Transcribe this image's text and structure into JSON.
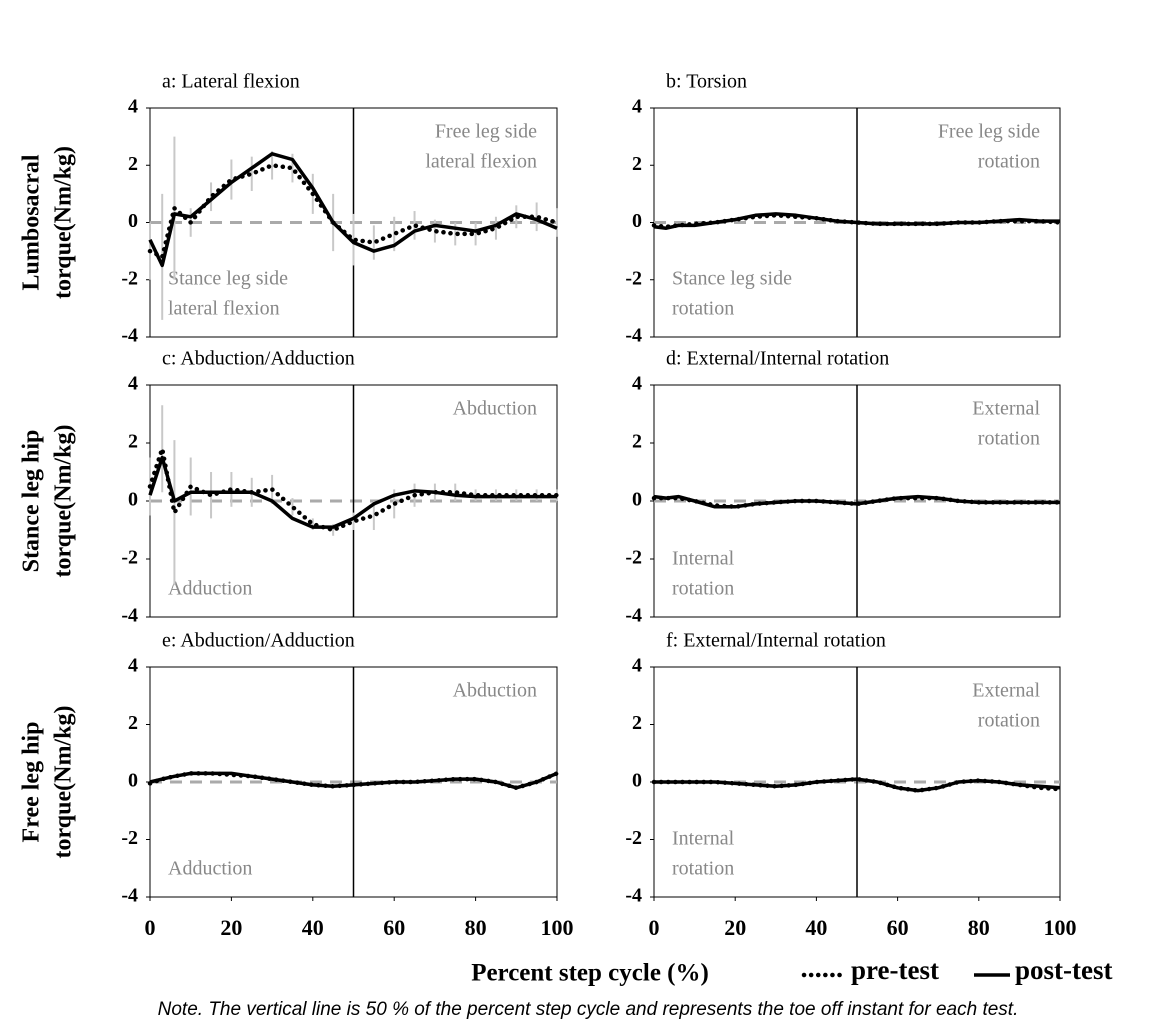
{
  "chart_data": [
    {
      "type": "line",
      "title": "a: Lateral flexion",
      "x": [
        0,
        3,
        6,
        10,
        15,
        20,
        25,
        30,
        35,
        40,
        45,
        50,
        55,
        60,
        65,
        70,
        75,
        80,
        85,
        90,
        95,
        100
      ],
      "series": [
        {
          "color": "#000000",
          "values": [
            -1.0,
            -1.2,
            0.5,
            0.0,
            0.9,
            1.5,
            1.7,
            2.0,
            1.9,
            1.0,
            0.0,
            -0.6,
            -0.7,
            -0.4,
            -0.1,
            -0.3,
            -0.4,
            -0.4,
            -0.2,
            0.2,
            0.2,
            0.0
          ],
          "error": [
            1.0,
            2.2,
            2.5,
            0.5,
            0.5,
            0.7,
            0.6,
            0.5,
            0.5,
            0.7,
            1.0,
            0.9,
            0.6,
            0.6,
            0.5,
            0.4,
            0.4,
            0.4,
            0.4,
            0.4,
            0.5,
            0.5
          ]
        },
        {
          "color": "#000000",
          "values": [
            -0.6,
            -1.5,
            0.3,
            0.2,
            0.8,
            1.4,
            1.9,
            2.4,
            2.2,
            1.2,
            0.0,
            -0.7,
            -1.0,
            -0.8,
            -0.3,
            -0.1,
            -0.2,
            -0.3,
            -0.1,
            0.3,
            0.1,
            -0.2
          ]
        }
      ],
      "annotations": [
        [
          "Free leg side",
          "lateral flexion"
        ],
        [
          "Stance leg side",
          "lateral flexion"
        ]
      ],
      "xlim": [
        0,
        100
      ],
      "ylim": [
        -4,
        4
      ],
      "yticks": [
        -4,
        -2,
        0,
        2,
        4
      ],
      "reference_y": 0,
      "divider_x": 50
    },
    {
      "type": "line",
      "title": "b: Torsion",
      "x": [
        0,
        3,
        6,
        10,
        15,
        20,
        25,
        30,
        35,
        40,
        45,
        50,
        55,
        60,
        65,
        70,
        75,
        80,
        85,
        90,
        95,
        100
      ],
      "series": [
        {
          "color": "#000000",
          "values": [
            -0.1,
            -0.15,
            -0.1,
            -0.05,
            0,
            0.1,
            0.2,
            0.25,
            0.2,
            0.15,
            0.05,
            0,
            -0.05,
            -0.05,
            -0.05,
            -0.05,
            0,
            0,
            0.05,
            0.05,
            0.05,
            0
          ]
        },
        {
          "color": "#000000",
          "values": [
            -0.15,
            -0.2,
            -0.1,
            -0.1,
            0,
            0.1,
            0.25,
            0.3,
            0.25,
            0.15,
            0.05,
            0,
            -0.05,
            -0.05,
            -0.05,
            -0.05,
            0,
            0,
            0.05,
            0.1,
            0.05,
            0.05
          ]
        }
      ],
      "annotations": [
        [
          "Free leg side",
          "rotation"
        ],
        [
          "Stance leg side",
          "rotation"
        ]
      ],
      "xlim": [
        0,
        100
      ],
      "ylim": [
        -4,
        4
      ],
      "yticks": [
        -4,
        -2,
        0,
        2,
        4
      ],
      "reference_y": 0,
      "divider_x": 50
    },
    {
      "type": "line",
      "title": "c: Abduction/Adduction",
      "x": [
        0,
        3,
        6,
        10,
        15,
        20,
        25,
        30,
        35,
        40,
        45,
        50,
        55,
        60,
        65,
        70,
        75,
        80,
        85,
        90,
        95,
        100
      ],
      "series": [
        {
          "color": "#000000",
          "values": [
            0.5,
            1.8,
            -0.4,
            0.5,
            0.2,
            0.4,
            0.3,
            0.4,
            -0.2,
            -0.8,
            -1.0,
            -0.7,
            -0.5,
            -0.1,
            0.2,
            0.3,
            0.3,
            0.2,
            0.2,
            0.2,
            0.2,
            0.2
          ],
          "error": [
            1.0,
            1.5,
            2.5,
            1.0,
            0.8,
            0.6,
            0.5,
            0.5,
            0.3,
            0.2,
            0.2,
            0.3,
            0.5,
            0.5,
            0.4,
            0.3,
            0.3,
            0.2,
            0.2,
            0.2,
            0.2,
            0.2
          ]
        },
        {
          "color": "#000000",
          "values": [
            0.2,
            1.5,
            0.0,
            0.3,
            0.3,
            0.3,
            0.3,
            0.0,
            -0.6,
            -0.9,
            -0.9,
            -0.6,
            -0.1,
            0.2,
            0.35,
            0.3,
            0.2,
            0.15,
            0.15,
            0.15,
            0.15,
            0.15
          ]
        }
      ],
      "annotations": [
        [
          "Abduction"
        ],
        [
          "Adduction"
        ]
      ],
      "xlim": [
        0,
        100
      ],
      "ylim": [
        -4,
        4
      ],
      "yticks": [
        -4,
        -2,
        0,
        2,
        4
      ],
      "reference_y": 0,
      "divider_x": 50
    },
    {
      "type": "line",
      "title": "d: External/Internal rotation",
      "x": [
        0,
        3,
        6,
        10,
        15,
        20,
        25,
        30,
        35,
        40,
        45,
        50,
        55,
        60,
        65,
        70,
        75,
        80,
        85,
        90,
        95,
        100
      ],
      "series": [
        {
          "color": "#000000",
          "values": [
            0.1,
            0.1,
            0.1,
            0,
            -0.15,
            -0.2,
            -0.1,
            -0.05,
            0,
            0,
            -0.05,
            -0.1,
            0,
            0.1,
            0.1,
            0.1,
            0,
            -0.05,
            -0.05,
            -0.05,
            -0.05,
            -0.05
          ]
        },
        {
          "color": "#000000",
          "values": [
            0.15,
            0.1,
            0.15,
            0,
            -0.2,
            -0.2,
            -0.1,
            -0.05,
            0,
            0,
            -0.05,
            -0.1,
            0,
            0.1,
            0.15,
            0.1,
            0,
            -0.05,
            -0.05,
            -0.05,
            -0.05,
            -0.05
          ]
        }
      ],
      "annotations": [
        [
          "External",
          "rotation"
        ],
        [
          "Internal",
          "rotation"
        ]
      ],
      "xlim": [
        0,
        100
      ],
      "ylim": [
        -4,
        4
      ],
      "yticks": [
        -4,
        -2,
        0,
        2,
        4
      ],
      "reference_y": 0,
      "divider_x": 50
    },
    {
      "type": "line",
      "title": "e: Abduction/Adduction",
      "x": [
        0,
        3,
        6,
        10,
        15,
        20,
        25,
        30,
        35,
        40,
        45,
        50,
        55,
        60,
        65,
        70,
        75,
        80,
        85,
        90,
        95,
        100
      ],
      "series": [
        {
          "color": "#000000",
          "values": [
            -0.05,
            0.1,
            0.2,
            0.3,
            0.3,
            0.25,
            0.2,
            0.1,
            0,
            -0.1,
            -0.15,
            -0.1,
            -0.05,
            0,
            0,
            0.05,
            0.1,
            0.1,
            0,
            -0.2,
            0,
            0.3
          ]
        },
        {
          "color": "#000000",
          "values": [
            0,
            0.1,
            0.2,
            0.3,
            0.3,
            0.3,
            0.2,
            0.1,
            0,
            -0.1,
            -0.15,
            -0.1,
            -0.05,
            0,
            0,
            0.05,
            0.1,
            0.1,
            0,
            -0.2,
            0,
            0.3
          ]
        }
      ],
      "annotations": [
        [
          "Abduction"
        ],
        [
          "Adduction"
        ]
      ],
      "xlim": [
        0,
        100
      ],
      "ylim": [
        -4,
        4
      ],
      "xticks": [
        0,
        20,
        40,
        60,
        80,
        100
      ],
      "yticks": [
        -4,
        -2,
        0,
        2,
        4
      ],
      "reference_y": 0,
      "divider_x": 50
    },
    {
      "type": "line",
      "title": "f: External/Internal rotation",
      "x": [
        0,
        3,
        6,
        10,
        15,
        20,
        25,
        30,
        35,
        40,
        45,
        50,
        55,
        60,
        65,
        70,
        75,
        80,
        85,
        90,
        95,
        100
      ],
      "series": [
        {
          "color": "#000000",
          "values": [
            0,
            0,
            0,
            0,
            0,
            -0.05,
            -0.1,
            -0.15,
            -0.1,
            0,
            0.05,
            0.1,
            0,
            -0.2,
            -0.3,
            -0.2,
            0,
            0.05,
            0,
            -0.1,
            -0.2,
            -0.25
          ]
        },
        {
          "color": "#000000",
          "values": [
            0,
            0,
            0,
            0,
            0,
            -0.05,
            -0.1,
            -0.15,
            -0.1,
            0,
            0.05,
            0.1,
            0,
            -0.2,
            -0.3,
            -0.2,
            0,
            0.05,
            0,
            -0.1,
            -0.15,
            -0.2
          ]
        }
      ],
      "annotations": [
        [
          "External",
          "rotation"
        ],
        [
          "Internal",
          "rotation"
        ]
      ],
      "xlim": [
        0,
        100
      ],
      "ylim": [
        -4,
        4
      ],
      "xticks": [
        0,
        20,
        40,
        60,
        80,
        100
      ],
      "yticks": [
        -4,
        -2,
        0,
        2,
        4
      ],
      "reference_y": 0,
      "divider_x": 50
    }
  ],
  "y_labels": [
    [
      "Lumbosacral",
      "torque(Nm/kg)"
    ],
    [
      "Stance leg hip",
      "torque(Nm/kg)"
    ],
    [
      "Free leg hip",
      "torque(Nm/kg)"
    ]
  ],
  "x_label": "Percent step cycle (%)",
  "legend": [
    {
      "name": "pre-test",
      "style": "dotted"
    },
    {
      "name": "post-test",
      "style": "solid"
    }
  ],
  "note": "Note. The vertical line is 50 % of the percent step cycle and represents the toe off instant for each test."
}
